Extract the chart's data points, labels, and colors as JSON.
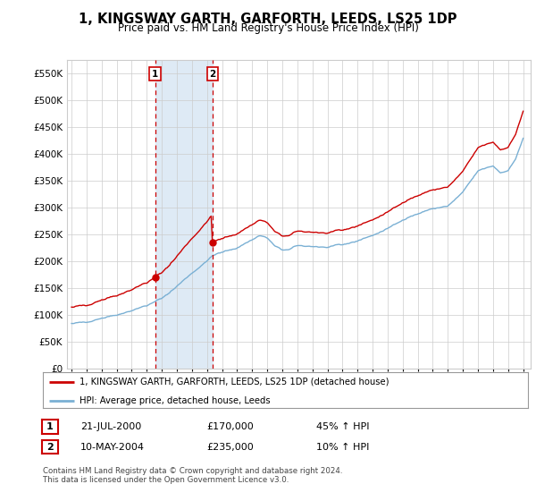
{
  "title": "1, KINGSWAY GARTH, GARFORTH, LEEDS, LS25 1DP",
  "subtitle": "Price paid vs. HM Land Registry's House Price Index (HPI)",
  "legend_line1": "1, KINGSWAY GARTH, GARFORTH, LEEDS, LS25 1DP (detached house)",
  "legend_line2": "HPI: Average price, detached house, Leeds",
  "footer": "Contains HM Land Registry data © Crown copyright and database right 2024.\nThis data is licensed under the Open Government Licence v3.0.",
  "transaction1": {
    "label": "1",
    "date": "21-JUL-2000",
    "price": "£170,000",
    "pct": "45% ↑ HPI"
  },
  "transaction2": {
    "label": "2",
    "date": "10-MAY-2004",
    "price": "£235,000",
    "pct": "10% ↑ HPI"
  },
  "vline1_x": 2000.55,
  "vline2_x": 2004.36,
  "ylim": [
    0,
    575000
  ],
  "xlim_start": 1994.7,
  "xlim_end": 2025.5,
  "red_color": "#cc0000",
  "blue_color": "#7ab0d4",
  "shaded_color": "#deeaf5",
  "background_color": "#ffffff",
  "grid_color": "#cccccc",
  "title_fontsize": 10.5,
  "subtitle_fontsize": 8.5,
  "ytick_labels": [
    "£0",
    "£50K",
    "£100K",
    "£150K",
    "£200K",
    "£250K",
    "£300K",
    "£350K",
    "£400K",
    "£450K",
    "£500K",
    "£550K"
  ],
  "ytick_values": [
    0,
    50000,
    100000,
    150000,
    200000,
    250000,
    300000,
    350000,
    400000,
    450000,
    500000,
    550000
  ],
  "purchase1_year": 2000.55,
  "purchase1_price": 170000,
  "purchase2_year": 2004.36,
  "purchase2_price": 235000
}
